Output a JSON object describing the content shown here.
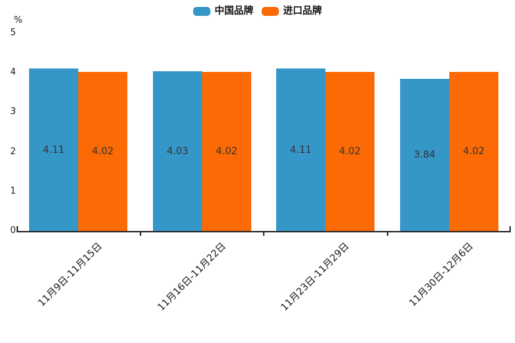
{
  "chart_data": {
    "type": "bar",
    "title": "",
    "xlabel": "",
    "ylabel": "%",
    "ylim": [
      0,
      5
    ],
    "y_ticks": [
      0,
      1,
      2,
      3,
      4,
      5
    ],
    "grid": false,
    "legend_position": "top-center",
    "data_labels": "inside-center",
    "x_tick_label_rotation_deg": 45,
    "categories": [
      "11月9日-11月15日",
      "11月16日-11月22日",
      "11月23日-11月29日",
      "11月30日-12月6日"
    ],
    "series": [
      {
        "name": "中国品牌",
        "color": "#3596c8",
        "values": [
          4.11,
          4.03,
          4.11,
          3.84
        ]
      },
      {
        "name": "进口品牌",
        "color": "#fb6a04",
        "values": [
          4.02,
          4.02,
          4.02,
          4.02
        ]
      }
    ]
  }
}
